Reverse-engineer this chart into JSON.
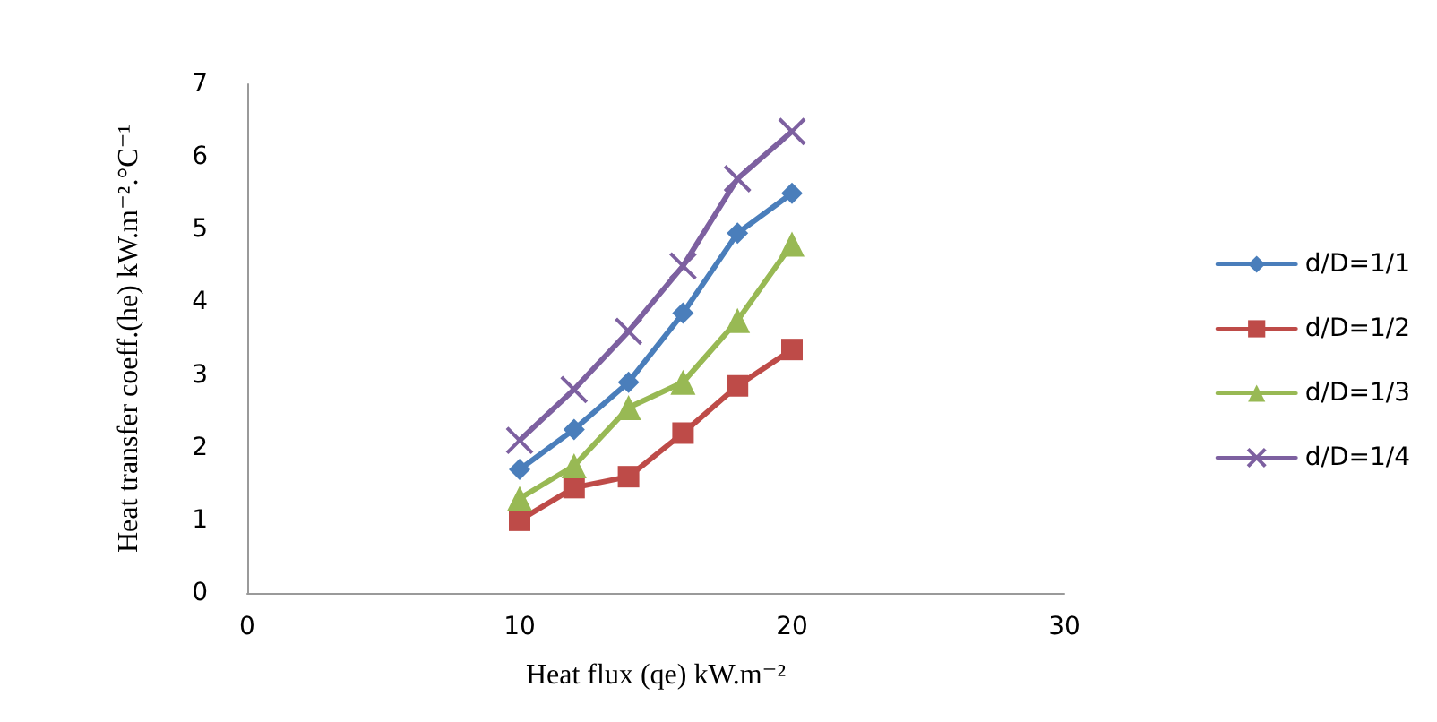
{
  "chart_data": {
    "type": "line",
    "xlabel": "Heat flux (qe) kW.m⁻²",
    "ylabel": "Heat transfer coeff.(he) kW.m⁻².°C⁻¹",
    "x": [
      10,
      12,
      14,
      16,
      18,
      20
    ],
    "series": [
      {
        "name": "d/D=1/1",
        "color": "#4a7ebb",
        "marker": "diamond",
        "values": [
          1.7,
          2.25,
          2.9,
          3.85,
          4.95,
          5.5
        ]
      },
      {
        "name": "d/D=1/2",
        "color": "#be4b48",
        "marker": "square",
        "values": [
          1.0,
          1.45,
          1.6,
          2.2,
          2.85,
          3.35
        ]
      },
      {
        "name": "d/D=1/3",
        "color": "#98b954",
        "marker": "triangle",
        "values": [
          1.3,
          1.75,
          2.55,
          2.9,
          3.75,
          4.8
        ]
      },
      {
        "name": "d/D=1/4",
        "color": "#7d60a0",
        "marker": "cross",
        "values": [
          2.1,
          2.8,
          3.6,
          4.5,
          5.7,
          6.35
        ]
      }
    ],
    "xlim": [
      0,
      30
    ],
    "xticks": [
      0,
      10,
      20,
      30
    ],
    "ylim": [
      0,
      7
    ],
    "yticks": [
      0,
      1,
      2,
      3,
      4,
      5,
      6,
      7
    ],
    "grid": false,
    "legend": "right"
  }
}
